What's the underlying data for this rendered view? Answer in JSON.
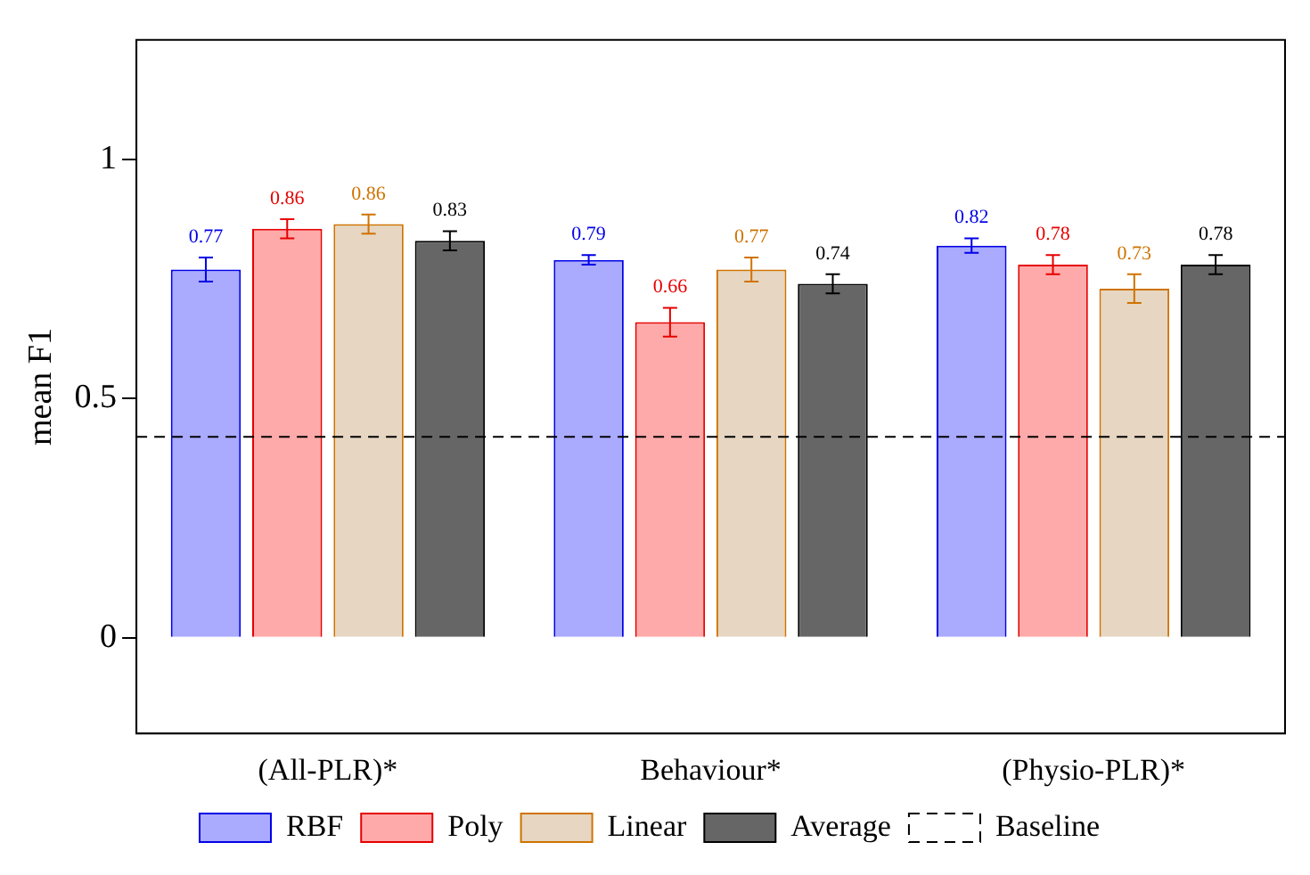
{
  "chart_data": {
    "type": "bar",
    "ylabel": "mean F1",
    "categories": [
      "(All-PLR)*",
      "Behaviour*",
      "(Physio-PLR)*"
    ],
    "series": [
      {
        "name": "RBF",
        "color": "#aaaaff",
        "values": [
          0.77,
          0.79,
          0.82
        ],
        "errors": [
          0.025,
          0.01,
          0.015
        ],
        "value_labels": [
          "0.77",
          "0.79",
          "0.82"
        ]
      },
      {
        "name": "Poly",
        "color": "#ffaaaa",
        "values": [
          0.855,
          0.66,
          0.78
        ],
        "errors": [
          0.02,
          0.03,
          0.02
        ],
        "value_labels": [
          "0.86",
          "0.66",
          "0.78"
        ]
      },
      {
        "name": "Linear",
        "color": "#e6d6c2",
        "values": [
          0.865,
          0.77,
          0.73
        ],
        "errors": [
          0.02,
          0.025,
          0.03
        ],
        "value_labels": [
          "0.86",
          "0.77",
          "0.73"
        ]
      },
      {
        "name": "Average",
        "color": "#666666",
        "values": [
          0.83,
          0.74,
          0.78
        ],
        "errors": [
          0.02,
          0.02,
          0.02
        ],
        "value_labels": [
          "0.83",
          "0.74",
          "0.78"
        ]
      }
    ],
    "ylim": [
      -0.2,
      1.25
    ],
    "yticks": [
      0,
      0.5,
      1
    ],
    "grid": false,
    "legend": "bottom",
    "ref_lines": [
      {
        "axis": "y",
        "value": 0.42,
        "label": "Baseline",
        "line_style": "dashed",
        "color": "#000000"
      }
    ]
  }
}
